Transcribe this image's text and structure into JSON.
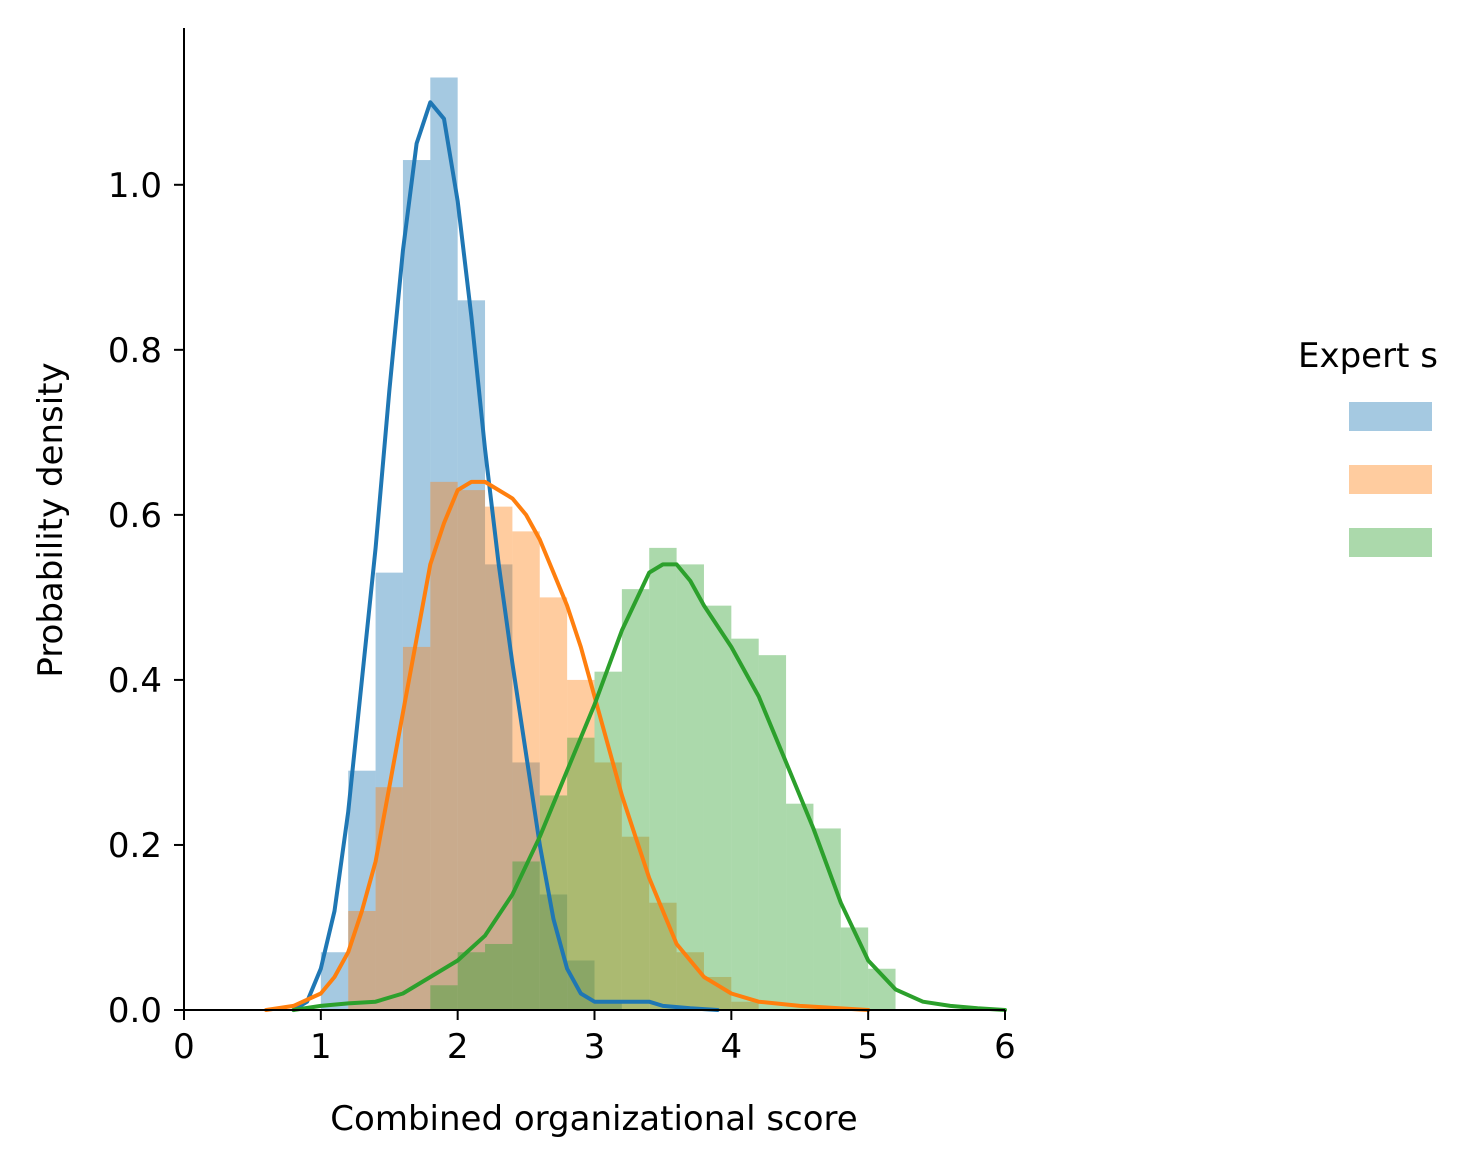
{
  "chart_data": {
    "type": "area",
    "title": "",
    "xlabel": "Combined organizational score",
    "ylabel": "Probability density",
    "xlim": [
      0,
      6
    ],
    "ylim": [
      0,
      1.19
    ],
    "x_ticks": [
      0,
      1,
      2,
      3,
      4,
      5,
      6
    ],
    "y_ticks": [
      0.0,
      0.2,
      0.4,
      0.6,
      0.8,
      1.0
    ],
    "grid": false,
    "legend": {
      "title": "Expert s",
      "placement": "right, clipped at image edge"
    },
    "bin_width": 0.2,
    "series": [
      {
        "color": "#1f77b4",
        "hist_edges_start": 1.0,
        "hist_values": [
          0.07,
          0.29,
          0.53,
          1.03,
          1.13,
          0.86,
          0.54,
          0.3,
          0.14,
          0.06,
          0.01
        ],
        "kde": [
          [
            0.8,
            0.0
          ],
          [
            0.9,
            0.01
          ],
          [
            1.0,
            0.05
          ],
          [
            1.1,
            0.12
          ],
          [
            1.2,
            0.24
          ],
          [
            1.3,
            0.4
          ],
          [
            1.4,
            0.56
          ],
          [
            1.5,
            0.75
          ],
          [
            1.6,
            0.92
          ],
          [
            1.7,
            1.05
          ],
          [
            1.8,
            1.1
          ],
          [
            1.9,
            1.08
          ],
          [
            2.0,
            0.98
          ],
          [
            2.1,
            0.84
          ],
          [
            2.2,
            0.68
          ],
          [
            2.3,
            0.54
          ],
          [
            2.4,
            0.42
          ],
          [
            2.5,
            0.31
          ],
          [
            2.6,
            0.2
          ],
          [
            2.7,
            0.11
          ],
          [
            2.8,
            0.05
          ],
          [
            2.9,
            0.02
          ],
          [
            3.0,
            0.01
          ],
          [
            3.1,
            0.01
          ],
          [
            3.2,
            0.01
          ],
          [
            3.3,
            0.01
          ],
          [
            3.4,
            0.01
          ],
          [
            3.5,
            0.005
          ],
          [
            3.7,
            0.002
          ],
          [
            3.9,
            0.0
          ]
        ]
      },
      {
        "color": "#ff7f0e",
        "hist_edges_start": 1.2,
        "hist_values": [
          0.12,
          0.27,
          0.44,
          0.64,
          0.63,
          0.61,
          0.58,
          0.5,
          0.4,
          0.3,
          0.21,
          0.13,
          0.07,
          0.04,
          0.01
        ],
        "kde": [
          [
            0.6,
            0.0
          ],
          [
            0.8,
            0.005
          ],
          [
            1.0,
            0.02
          ],
          [
            1.1,
            0.04
          ],
          [
            1.2,
            0.07
          ],
          [
            1.3,
            0.12
          ],
          [
            1.4,
            0.18
          ],
          [
            1.5,
            0.27
          ],
          [
            1.6,
            0.36
          ],
          [
            1.7,
            0.45
          ],
          [
            1.8,
            0.54
          ],
          [
            1.9,
            0.59
          ],
          [
            2.0,
            0.63
          ],
          [
            2.1,
            0.64
          ],
          [
            2.2,
            0.64
          ],
          [
            2.3,
            0.63
          ],
          [
            2.4,
            0.62
          ],
          [
            2.5,
            0.6
          ],
          [
            2.6,
            0.57
          ],
          [
            2.7,
            0.53
          ],
          [
            2.8,
            0.49
          ],
          [
            2.9,
            0.44
          ],
          [
            3.0,
            0.38
          ],
          [
            3.1,
            0.32
          ],
          [
            3.2,
            0.26
          ],
          [
            3.3,
            0.21
          ],
          [
            3.4,
            0.16
          ],
          [
            3.5,
            0.12
          ],
          [
            3.6,
            0.08
          ],
          [
            3.7,
            0.06
          ],
          [
            3.8,
            0.04
          ],
          [
            3.9,
            0.03
          ],
          [
            4.0,
            0.02
          ],
          [
            4.2,
            0.01
          ],
          [
            4.5,
            0.005
          ],
          [
            5.0,
            0.0
          ]
        ]
      },
      {
        "color": "#2ca02c",
        "hist_edges_start": 1.8,
        "hist_values": [
          0.03,
          0.07,
          0.08,
          0.18,
          0.26,
          0.33,
          0.41,
          0.51,
          0.56,
          0.54,
          0.49,
          0.45,
          0.43,
          0.25,
          0.22,
          0.1,
          0.05
        ],
        "kde": [
          [
            0.8,
            0.0
          ],
          [
            1.0,
            0.005
          ],
          [
            1.2,
            0.008
          ],
          [
            1.4,
            0.01
          ],
          [
            1.6,
            0.02
          ],
          [
            1.8,
            0.04
          ],
          [
            2.0,
            0.06
          ],
          [
            2.2,
            0.09
          ],
          [
            2.4,
            0.14
          ],
          [
            2.6,
            0.21
          ],
          [
            2.8,
            0.29
          ],
          [
            3.0,
            0.37
          ],
          [
            3.2,
            0.46
          ],
          [
            3.4,
            0.53
          ],
          [
            3.5,
            0.54
          ],
          [
            3.6,
            0.54
          ],
          [
            3.7,
            0.52
          ],
          [
            3.8,
            0.49
          ],
          [
            4.0,
            0.44
          ],
          [
            4.2,
            0.38
          ],
          [
            4.4,
            0.3
          ],
          [
            4.6,
            0.22
          ],
          [
            4.8,
            0.13
          ],
          [
            5.0,
            0.06
          ],
          [
            5.2,
            0.025
          ],
          [
            5.4,
            0.01
          ],
          [
            5.6,
            0.005
          ],
          [
            5.8,
            0.002
          ],
          [
            6.0,
            0.0
          ]
        ]
      }
    ]
  }
}
